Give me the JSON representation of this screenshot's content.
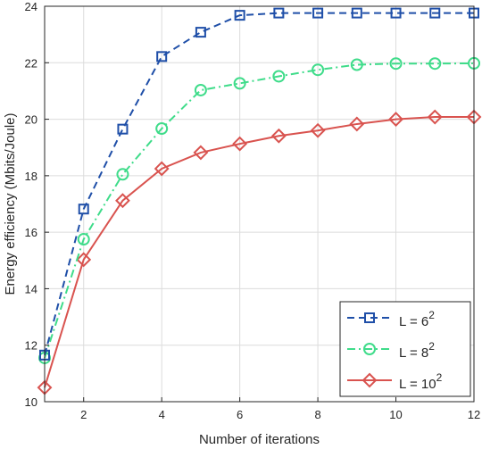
{
  "chart_data": {
    "type": "line",
    "title": "",
    "xlabel": "Number of iterations",
    "ylabel": "Energy efficiency (Mbits/Joule)",
    "xlim": [
      1,
      12
    ],
    "ylim": [
      10,
      24
    ],
    "xticks": [
      2,
      4,
      6,
      8,
      10,
      12
    ],
    "yticks": [
      10,
      12,
      14,
      16,
      18,
      20,
      22,
      24
    ],
    "grid": true,
    "legend_position": "bottom-right",
    "x": [
      1,
      2,
      3,
      4,
      5,
      6,
      7,
      8,
      9,
      10,
      11,
      12
    ],
    "series": [
      {
        "name": "L = 6",
        "superscript": "2",
        "color": "#1f4fa8",
        "line_style": "dashed",
        "marker": "square",
        "values": [
          11.65,
          16.82,
          19.65,
          22.22,
          23.08,
          23.68,
          23.76,
          23.76,
          23.76,
          23.76,
          23.76,
          23.76
        ]
      },
      {
        "name": "L = 8",
        "superscript": "2",
        "color": "#3fdc8a",
        "line_style": "dashdot",
        "marker": "circle",
        "values": [
          11.55,
          15.75,
          18.05,
          19.67,
          21.03,
          21.27,
          21.52,
          21.75,
          21.93,
          21.97,
          21.97,
          21.98
        ]
      },
      {
        "name": "L = 10",
        "superscript": "2",
        "color": "#d9534f",
        "line_style": "solid",
        "marker": "diamond",
        "values": [
          10.5,
          15.03,
          17.12,
          18.25,
          18.82,
          19.13,
          19.41,
          19.6,
          19.83,
          20.0,
          20.08,
          20.08
        ]
      }
    ]
  }
}
